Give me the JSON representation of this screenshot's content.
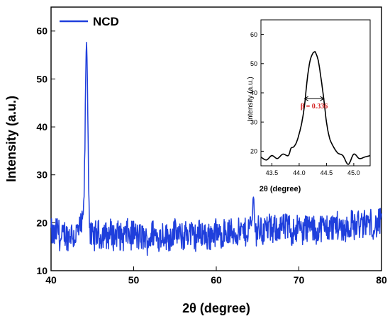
{
  "chart_data": [
    {
      "type": "line",
      "xlabel": "2θ (degree)",
      "ylabel": "Intensity (a.u.)",
      "xlim": [
        40,
        80
      ],
      "ylim": [
        10,
        65
      ],
      "x_ticks": [
        40,
        50,
        60,
        70,
        80
      ],
      "y_ticks": [
        10,
        20,
        30,
        40,
        50,
        60
      ],
      "legend": {
        "position": "top-left"
      },
      "grid": false,
      "series": [
        {
          "name": "NCD",
          "color": "#1f3fdc",
          "baseline": 18,
          "noise_x": [
            40.0,
            40.4,
            40.8,
            41.2,
            41.6,
            42.0,
            42.4,
            42.8,
            43.2,
            43.6,
            44.0,
            44.4,
            44.8,
            45.2,
            45.6,
            46.0,
            46.4,
            46.8,
            47.2,
            47.6,
            48.0,
            48.4,
            48.8,
            49.2,
            49.6,
            50.0,
            50.4,
            50.8,
            51.2,
            51.6,
            52.0,
            52.4,
            52.8,
            53.2,
            53.6,
            54.0,
            54.4,
            54.8,
            55.2,
            55.6,
            56.0,
            56.4,
            56.8,
            57.2,
            57.6,
            58.0,
            58.4,
            58.8,
            59.2,
            59.6,
            60.0,
            60.4,
            60.8,
            61.2,
            61.6,
            62.0,
            62.4,
            62.8,
            63.2,
            63.6,
            64.0,
            64.4,
            64.8,
            65.2,
            65.6,
            66.0,
            66.4,
            66.8,
            67.2,
            67.6,
            68.0,
            68.4,
            68.8,
            69.2,
            69.6,
            70.0,
            70.4,
            70.8,
            71.2,
            71.6,
            72.0,
            72.4,
            72.8,
            73.2,
            73.6,
            74.0,
            74.4,
            74.8,
            75.2,
            75.6,
            76.0,
            76.4,
            76.8,
            77.2,
            77.6,
            78.0,
            78.4,
            78.8,
            79.2,
            79.6,
            80.0
          ],
          "noise_y": [
            18,
            17,
            19,
            16,
            18,
            17,
            18,
            17,
            18,
            19,
            20,
            18,
            17,
            17,
            18,
            17,
            18,
            17,
            18,
            17,
            18,
            17,
            17,
            18,
            17,
            18,
            17,
            17,
            17,
            16,
            17,
            18,
            17,
            17,
            18,
            17,
            17,
            18,
            18,
            17,
            17,
            18,
            18,
            17,
            17,
            18,
            18,
            17,
            17,
            18,
            18,
            17,
            18,
            18,
            18,
            18,
            18,
            18,
            18,
            18,
            19,
            20,
            18,
            19,
            18,
            19,
            19,
            18,
            19,
            19,
            19,
            19,
            19,
            18,
            19,
            19,
            18,
            19,
            19,
            19,
            18,
            19,
            19,
            19,
            19,
            19,
            20,
            19,
            19,
            19,
            19,
            20,
            19,
            20,
            19,
            20,
            20,
            20,
            19,
            20,
            20
          ],
          "noise_amplitude": 3,
          "peaks": [
            {
              "center": 44.3,
              "height": 57,
              "width": 0.16
            },
            {
              "center": 64.5,
              "height": 26,
              "width": 0.08
            }
          ]
        }
      ]
    },
    {
      "type": "line",
      "inset": true,
      "xlabel": "2θ (degree)",
      "ylabel": "Intensity (a.u.)",
      "xlim": [
        43.3,
        45.3
      ],
      "ylim": [
        15,
        65
      ],
      "x_ticks": [
        43.5,
        44.0,
        44.5,
        45.0
      ],
      "y_ticks": [
        20,
        30,
        40,
        50,
        60
      ],
      "annotation": {
        "text": "β = 0.336",
        "color": "#d42424",
        "x1": 44.1,
        "x2": 44.45,
        "y": 38
      },
      "series": [
        {
          "color": "#000000",
          "x": [
            43.3,
            43.4,
            43.5,
            43.6,
            43.7,
            43.8,
            43.85,
            43.9,
            43.95,
            44.0,
            44.05,
            44.1,
            44.15,
            44.2,
            44.25,
            44.28,
            44.3,
            44.35,
            44.4,
            44.45,
            44.5,
            44.55,
            44.6,
            44.7,
            44.8,
            44.9,
            45.0,
            45.1,
            45.2,
            45.3
          ],
          "y": [
            18.0,
            17.0,
            18.5,
            17.5,
            19.0,
            18.5,
            21.0,
            21.5,
            23.0,
            26.0,
            30.0,
            36.0,
            45.0,
            51.0,
            53.5,
            54.0,
            53.8,
            51.0,
            45.0,
            38.0,
            30.0,
            25.0,
            22.5,
            19.5,
            18.5,
            15.5,
            19.0,
            17.5,
            18.0,
            18.5
          ]
        }
      ]
    }
  ]
}
